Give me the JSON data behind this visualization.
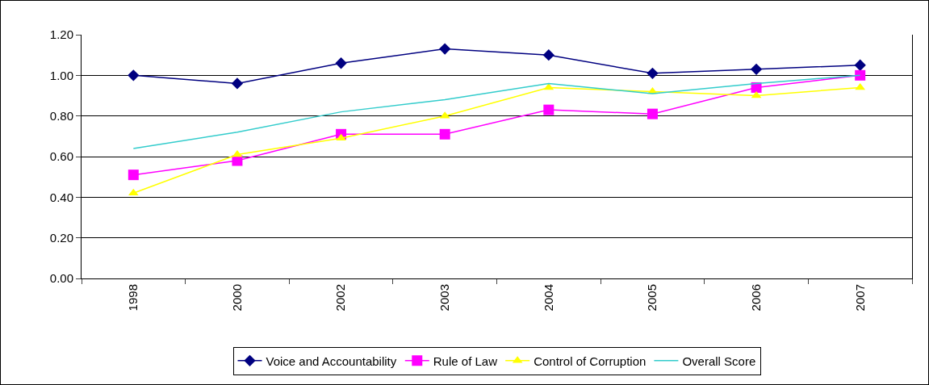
{
  "chart_data": {
    "type": "line",
    "categories": [
      "1998",
      "2000",
      "2002",
      "2003",
      "2004",
      "2005",
      "2006",
      "2007"
    ],
    "series": [
      {
        "name": "Voice and Accountability",
        "color": "#000080",
        "marker": "diamond",
        "values": [
          1.0,
          0.96,
          1.06,
          1.13,
          1.1,
          1.01,
          1.03,
          1.05
        ]
      },
      {
        "name": "Rule of Law",
        "color": "#ff00ff",
        "marker": "square",
        "values": [
          0.51,
          0.58,
          0.71,
          0.71,
          0.83,
          0.81,
          0.94,
          1.0
        ]
      },
      {
        "name": "Control of Corruption",
        "color": "#ffff00",
        "marker": "triangle",
        "values": [
          0.42,
          0.61,
          0.69,
          0.8,
          0.94,
          0.92,
          0.9,
          0.94
        ]
      },
      {
        "name": "Overall Score",
        "color": "#33cccc",
        "marker": "none",
        "values": [
          0.64,
          0.72,
          0.82,
          0.88,
          0.96,
          0.91,
          0.96,
          1.0
        ]
      }
    ],
    "ylim": [
      0,
      1.2
    ],
    "yticks": [
      {
        "value": 0,
        "label": "0.00"
      },
      {
        "value": 0.2,
        "label": "0.20"
      },
      {
        "value": 0.4,
        "label": "0.40"
      },
      {
        "value": 0.6,
        "label": "0.60"
      },
      {
        "value": 0.8,
        "label": "0.80"
      },
      {
        "value": 1.0,
        "label": "1.00"
      },
      {
        "value": 1.2,
        "label": "1.20"
      }
    ],
    "grid": "y",
    "legend": "bottom",
    "line_style": "solid"
  }
}
